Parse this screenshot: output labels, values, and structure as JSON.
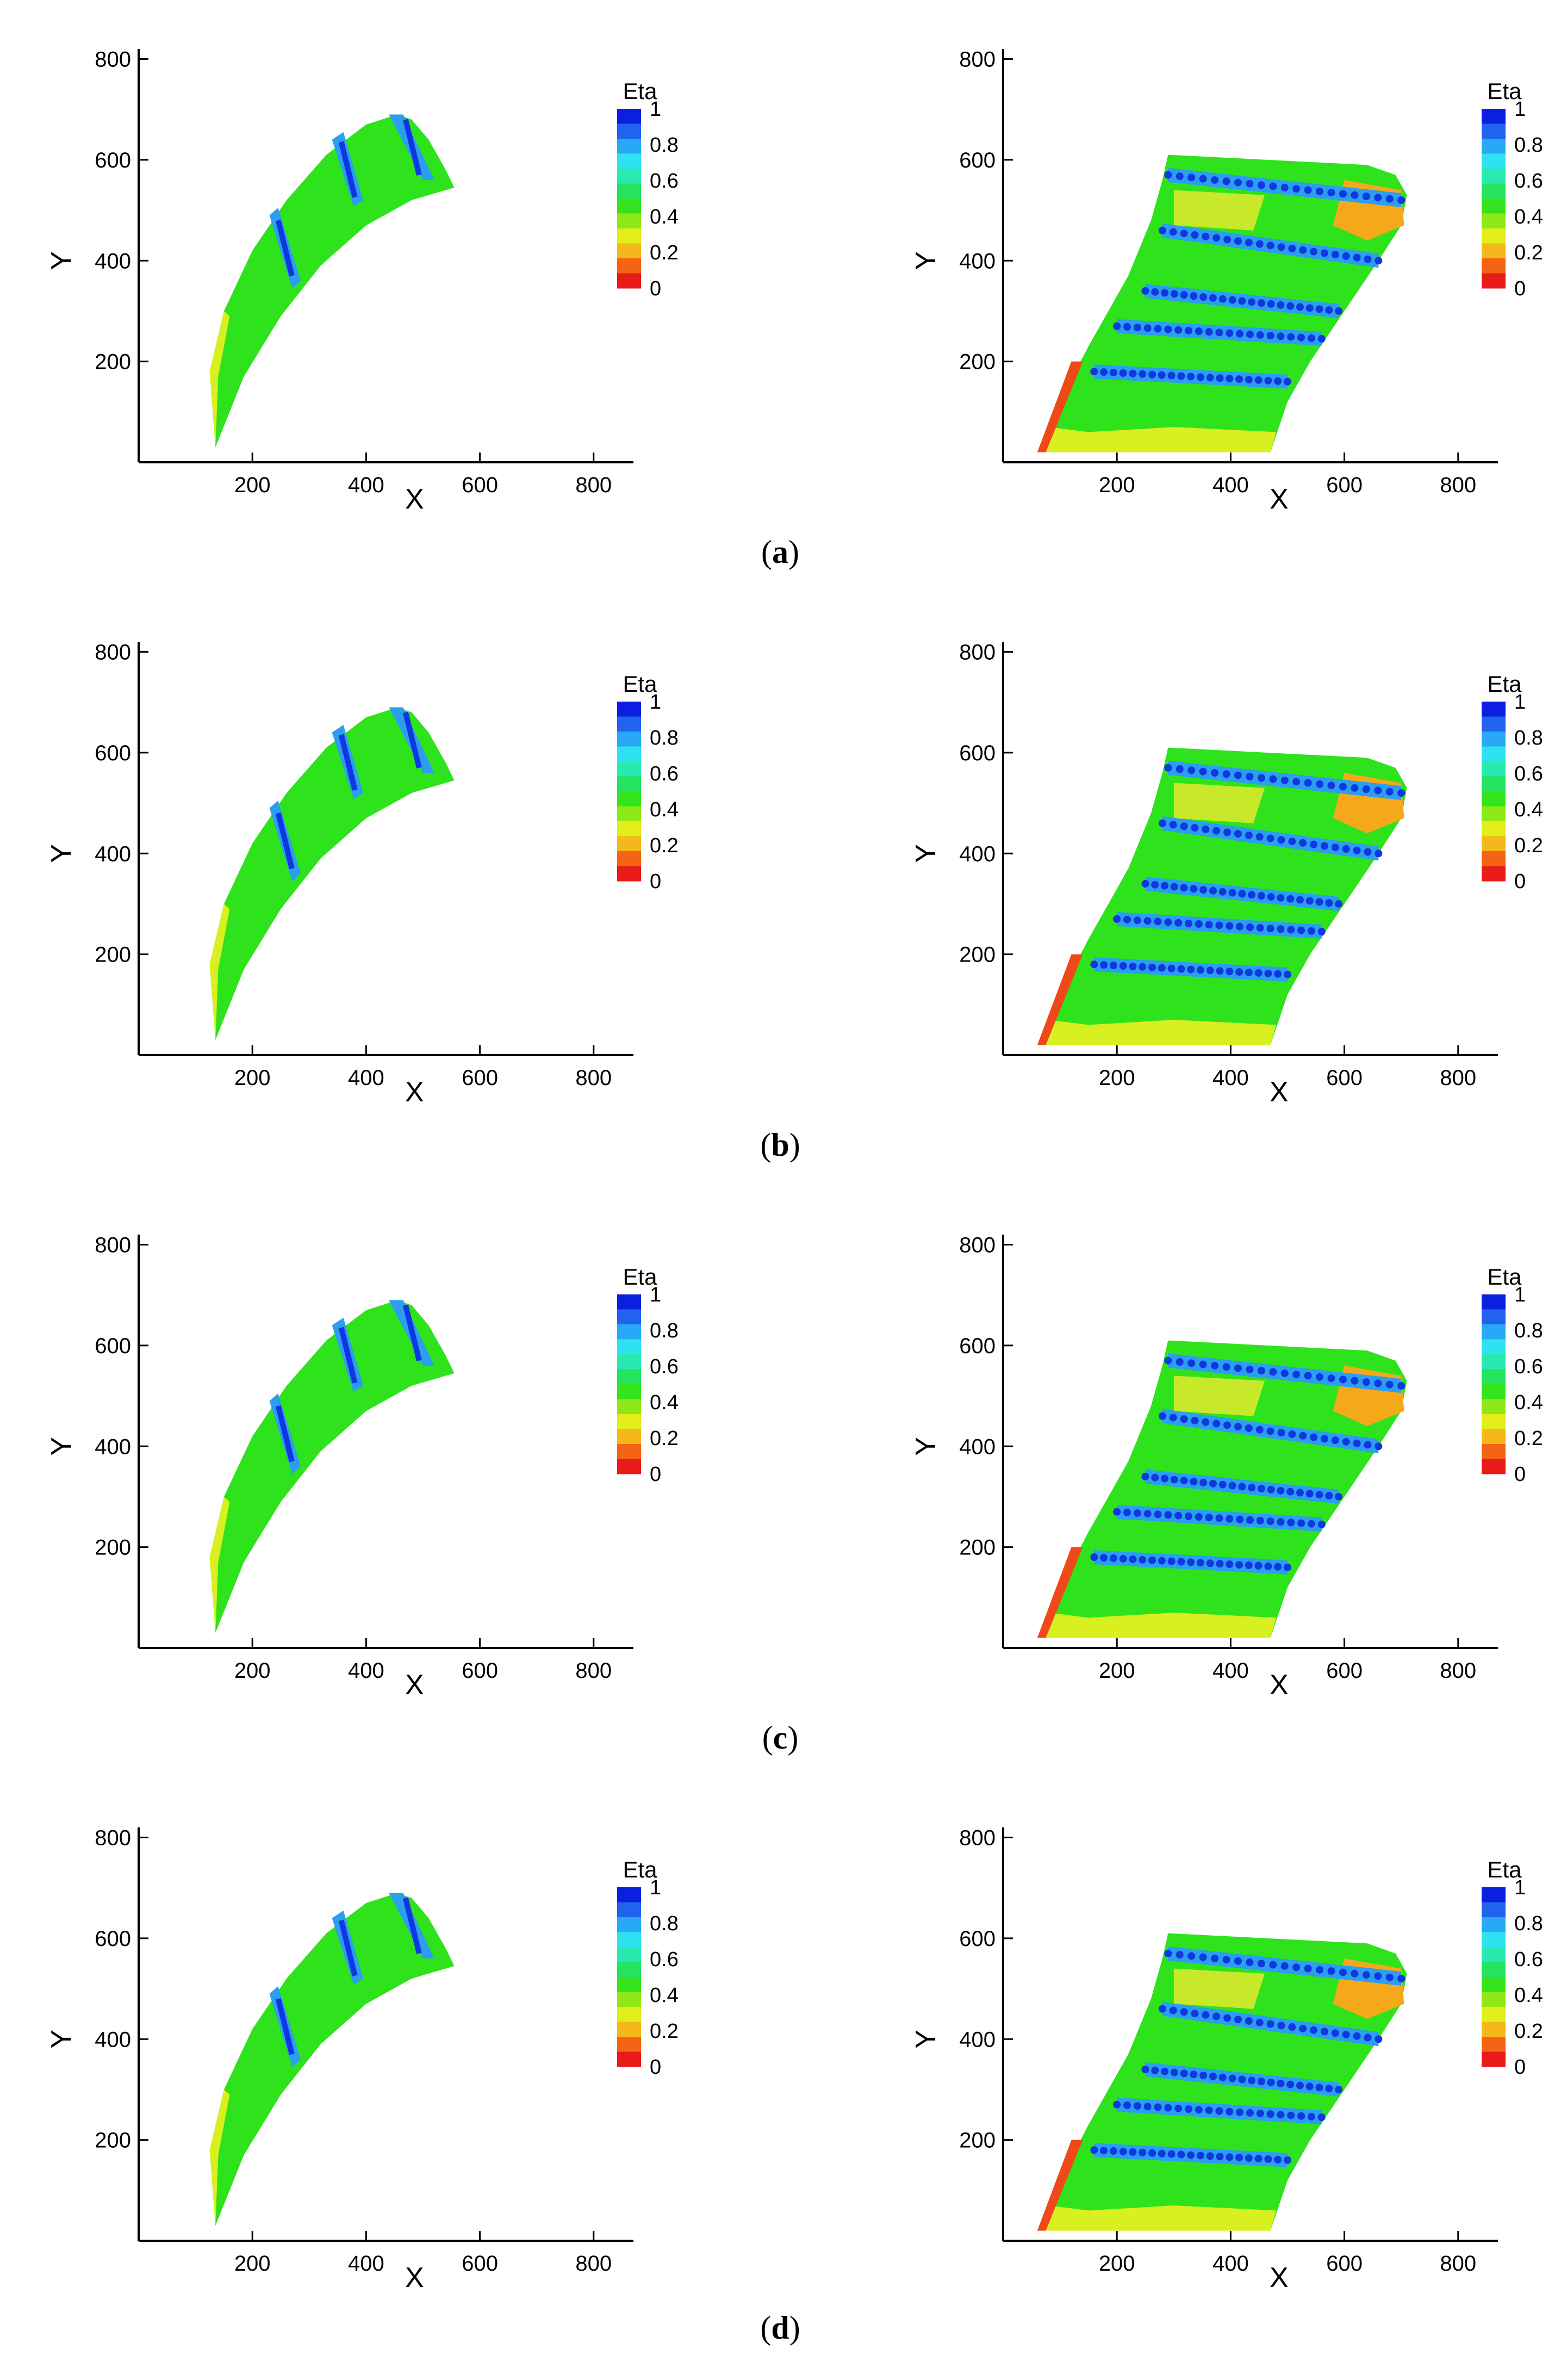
{
  "captions": [
    "a",
    "b",
    "c",
    "d"
  ],
  "chart_data": [
    {
      "type": "heatmap",
      "panel": "a",
      "view": "pressure-side",
      "xlabel": "X",
      "ylabel": "Y",
      "xticks": [
        200,
        400,
        600,
        800
      ],
      "yticks": [
        200,
        400,
        600,
        800
      ],
      "xlim": [
        0,
        870
      ],
      "ylim": [
        0,
        820
      ],
      "legend": {
        "title": "Eta",
        "ticks": [
          "1",
          "0.8",
          "0.6",
          "0.4",
          "0.2",
          "0"
        ]
      }
    },
    {
      "type": "heatmap",
      "panel": "a",
      "view": "suction-side",
      "xlabel": "X",
      "ylabel": "Y",
      "xticks": [
        200,
        400,
        600,
        800
      ],
      "yticks": [
        200,
        400,
        600,
        800
      ],
      "xlim": [
        0,
        870
      ],
      "ylim": [
        0,
        820
      ],
      "legend": {
        "title": "Eta",
        "ticks": [
          "1",
          "0.8",
          "0.6",
          "0.4",
          "0.2",
          "0"
        ]
      }
    },
    {
      "type": "heatmap",
      "panel": "b",
      "view": "pressure-side",
      "xlabel": "X",
      "ylabel": "Y",
      "xticks": [
        200,
        400,
        600,
        800
      ],
      "yticks": [
        200,
        400,
        600,
        800
      ],
      "xlim": [
        0,
        870
      ],
      "ylim": [
        0,
        820
      ],
      "legend": {
        "title": "Eta",
        "ticks": [
          "1",
          "0.8",
          "0.6",
          "0.4",
          "0.2",
          "0"
        ]
      }
    },
    {
      "type": "heatmap",
      "panel": "b",
      "view": "suction-side",
      "xlabel": "X",
      "ylabel": "Y",
      "xticks": [
        200,
        400,
        600,
        800
      ],
      "yticks": [
        200,
        400,
        600,
        800
      ],
      "xlim": [
        0,
        870
      ],
      "ylim": [
        0,
        820
      ],
      "legend": {
        "title": "Eta",
        "ticks": [
          "1",
          "0.8",
          "0.6",
          "0.4",
          "0.2",
          "0"
        ]
      }
    },
    {
      "type": "heatmap",
      "panel": "c",
      "view": "pressure-side",
      "xlabel": "X",
      "ylabel": "Y",
      "xticks": [
        200,
        400,
        600,
        800
      ],
      "yticks": [
        200,
        400,
        600,
        800
      ],
      "xlim": [
        0,
        870
      ],
      "ylim": [
        0,
        820
      ],
      "legend": {
        "title": "Eta",
        "ticks": [
          "1",
          "0.8",
          "0.6",
          "0.4",
          "0.2",
          "0"
        ]
      }
    },
    {
      "type": "heatmap",
      "panel": "c",
      "view": "suction-side",
      "xlabel": "X",
      "ylabel": "Y",
      "xticks": [
        200,
        400,
        600,
        800
      ],
      "yticks": [
        200,
        400,
        600,
        800
      ],
      "xlim": [
        0,
        870
      ],
      "ylim": [
        0,
        820
      ],
      "legend": {
        "title": "Eta",
        "ticks": [
          "1",
          "0.8",
          "0.6",
          "0.4",
          "0.2",
          "0"
        ]
      }
    },
    {
      "type": "heatmap",
      "panel": "d",
      "view": "pressure-side",
      "xlabel": "X",
      "ylabel": "Y",
      "xticks": [
        200,
        400,
        600,
        800
      ],
      "yticks": [
        200,
        400,
        600,
        800
      ],
      "xlim": [
        0,
        870
      ],
      "ylim": [
        0,
        820
      ],
      "legend": {
        "title": "Eta",
        "ticks": [
          "1",
          "0.8",
          "0.6",
          "0.4",
          "0.2",
          "0"
        ]
      }
    },
    {
      "type": "heatmap",
      "panel": "d",
      "view": "suction-side",
      "xlabel": "X",
      "ylabel": "Y",
      "xticks": [
        200,
        400,
        600,
        800
      ],
      "yticks": [
        200,
        400,
        600,
        800
      ],
      "xlim": [
        0,
        870
      ],
      "ylim": [
        0,
        820
      ],
      "legend": {
        "title": "Eta",
        "ticks": [
          "1",
          "0.8",
          "0.6",
          "0.4",
          "0.2",
          "0"
        ]
      }
    }
  ],
  "colors": {
    "scale": [
      "#0a1fe0",
      "#1f63ee",
      "#28a8f5",
      "#2fe2f0",
      "#28eab0",
      "#26e25f",
      "#33e41f",
      "#8ee814",
      "#e2ee1a",
      "#f5b81a",
      "#f56414",
      "#e81a1a"
    ],
    "field": "#2ee21c",
    "cool": "#2b9ef0",
    "deep": "#1037e0",
    "warm": "#f5a81a",
    "hot": "#f04818",
    "pale": "#d8ef20"
  }
}
